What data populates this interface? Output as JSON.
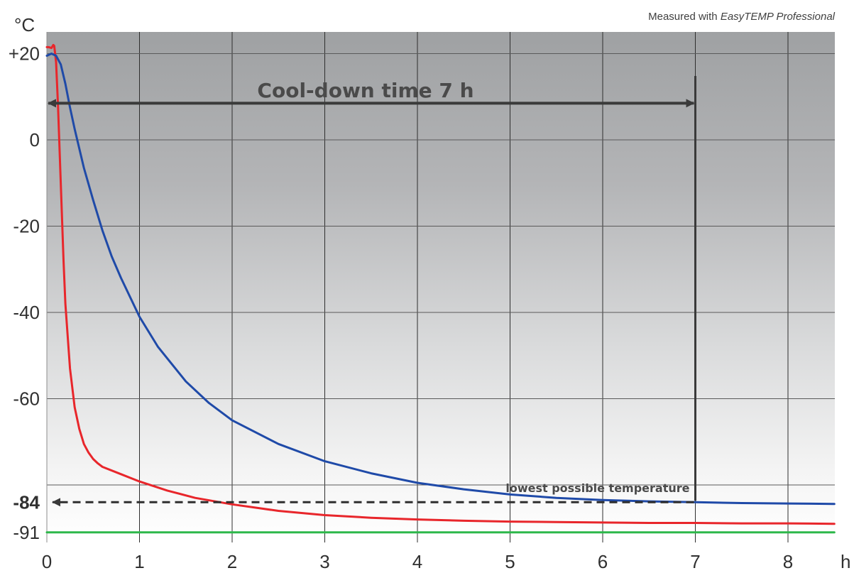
{
  "chart_data": {
    "type": "line",
    "credit": {
      "prefix": "Measured with ",
      "product": "EasyTEMP Professional"
    },
    "y_unit_label": "°C",
    "x_unit_label": "h",
    "xlim": [
      0,
      8.5
    ],
    "ylim": [
      -94,
      25
    ],
    "x_ticks": [
      {
        "value": 0,
        "label": "0"
      },
      {
        "value": 1,
        "label": "1"
      },
      {
        "value": 2,
        "label": "2"
      },
      {
        "value": 3,
        "label": "3"
      },
      {
        "value": 4,
        "label": "4"
      },
      {
        "value": 5,
        "label": "5"
      },
      {
        "value": 6,
        "label": "6"
      },
      {
        "value": 7,
        "label": "7"
      },
      {
        "value": 8,
        "label": "8"
      }
    ],
    "y_ticks": [
      {
        "value": 20,
        "label": "+20",
        "bold": false
      },
      {
        "value": 0,
        "label": "0",
        "bold": false
      },
      {
        "value": -20,
        "label": "-20",
        "bold": false
      },
      {
        "value": -40,
        "label": "-40",
        "bold": false
      },
      {
        "value": -60,
        "label": "-60",
        "bold": false
      },
      {
        "value": -84,
        "label": "-84",
        "bold": true
      },
      {
        "value": -91,
        "label": "-91",
        "bold": false
      }
    ],
    "grid": true,
    "extra_gridline_y": -80,
    "series": [
      {
        "color": "#e8262b",
        "x": [
          0,
          0.02,
          0.05,
          0.07,
          0.08,
          0.1,
          0.12,
          0.15,
          0.18,
          0.2,
          0.25,
          0.3,
          0.35,
          0.4,
          0.45,
          0.5,
          0.55,
          0.6,
          0.8,
          1.0,
          1.3,
          1.6,
          2.0,
          2.5,
          3.0,
          3.5,
          4.0,
          4.5,
          5.0,
          5.5,
          6.0,
          6.5,
          7.0,
          7.5,
          8.0,
          8.5
        ],
        "y": [
          21.5,
          21.5,
          21.3,
          22,
          21.8,
          18,
          8,
          -10,
          -28,
          -38,
          -53,
          -62,
          -67,
          -70.5,
          -72.5,
          -74,
          -75,
          -75.8,
          -77.5,
          -79.2,
          -81.3,
          -83,
          -84.5,
          -86,
          -87,
          -87.6,
          -88,
          -88.3,
          -88.5,
          -88.6,
          -88.7,
          -88.8,
          -88.8,
          -88.9,
          -88.9,
          -89
        ]
      },
      {
        "color": "#1f4aa8",
        "x": [
          0,
          0.05,
          0.1,
          0.15,
          0.2,
          0.25,
          0.3,
          0.4,
          0.5,
          0.6,
          0.7,
          0.8,
          1.0,
          1.2,
          1.5,
          1.75,
          2.0,
          2.5,
          3.0,
          3.5,
          4.0,
          4.5,
          5.0,
          5.5,
          6.0,
          6.5,
          7.0,
          7.5,
          8.0,
          8.5
        ],
        "y": [
          19.5,
          20,
          19.5,
          17.5,
          13,
          7.5,
          2.5,
          -6.5,
          -14,
          -21,
          -27,
          -32,
          -41,
          -48,
          -56,
          -61,
          -65,
          -70.5,
          -74.5,
          -77.3,
          -79.5,
          -81,
          -82.2,
          -83,
          -83.5,
          -83.8,
          -84,
          -84.2,
          -84.3,
          -84.4
        ]
      },
      {
        "color": "#2db84a",
        "x": [
          0,
          8.5
        ],
        "y": [
          -91,
          -91
        ]
      }
    ],
    "annotations": [
      {
        "text": "Cool-down time 7 h",
        "x_from": 0,
        "x_to": 7,
        "y": 8.5
      },
      {
        "text": "lowest possible temperature",
        "x": 7,
        "y": -84
      }
    ]
  }
}
